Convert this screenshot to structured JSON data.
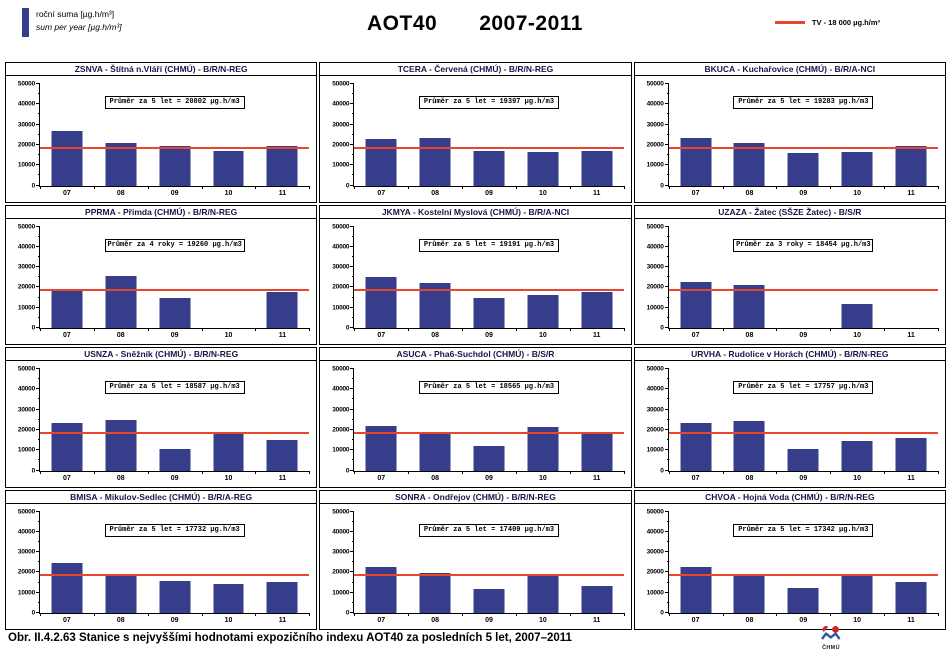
{
  "header": {
    "legend_bar": {
      "line1": "roční suma [µg.h/m³]",
      "line2": "sum per year [µg.h/m³]"
    },
    "title_left": "AOT40",
    "title_right": "2007-2011",
    "tv_legend": "TV - 18 000 µg.h/m³"
  },
  "footer": {
    "caption": "Obr. II.4.2.63  Stanice s nejvyššími hodnotami expozičního indexu AOT40 za posledních 5 let, 2007–2011",
    "logo_label": "ČHMÚ"
  },
  "colors": {
    "bar": "#363d8a",
    "tv_line": "#e8472e",
    "panel_title": "#16164a"
  },
  "axis": {
    "categories": [
      "07",
      "08",
      "09",
      "10",
      "11"
    ],
    "y_ticks": [
      0,
      10000,
      20000,
      30000,
      40000,
      50000
    ],
    "y_minor_step": 5000,
    "ylim": [
      0,
      50000
    ],
    "tv_value": 18000,
    "unit": "µg.h/m3"
  },
  "chart_data": [
    {
      "type": "bar",
      "title": "ZSNVA - Štítná n.Vláří (CHMÚ) - B/R/N-REG",
      "note": "Průměr za 5 let = 20802 µg.h/m3",
      "categories": [
        "07",
        "08",
        "09",
        "10",
        "11"
      ],
      "values": [
        26800,
        21000,
        19400,
        17200,
        19700
      ],
      "tv_value": 18000,
      "ylim": [
        0,
        50000
      ]
    },
    {
      "type": "bar",
      "title": "TCERA - Červená (CHMÚ) - B/R/N-REG",
      "note": "Průměr za 5 let = 19397 µg.h/m3",
      "categories": [
        "07",
        "08",
        "09",
        "10",
        "11"
      ],
      "values": [
        22800,
        23400,
        17000,
        16500,
        17000
      ],
      "tv_value": 18000,
      "ylim": [
        0,
        50000
      ]
    },
    {
      "type": "bar",
      "title": "BKUCA - Kuchařovice (CHMÚ) - B/R/A-NCI",
      "note": "Průměr za 5 let = 19283 µg.h/m3",
      "categories": [
        "07",
        "08",
        "09",
        "10",
        "11"
      ],
      "values": [
        23300,
        21000,
        15800,
        16400,
        19700
      ],
      "tv_value": 18000,
      "ylim": [
        0,
        50000
      ]
    },
    {
      "type": "bar",
      "title": "PPRMA - Přimda (CHMÚ) - B/R/N-REG",
      "note": "Průměr za 4 roky = 19260 µg.h/m3",
      "categories": [
        "07",
        "08",
        "09",
        "10",
        "11"
      ],
      "values": [
        18700,
        25800,
        15000,
        null,
        17500
      ],
      "tv_value": 18000,
      "ylim": [
        0,
        50000
      ]
    },
    {
      "type": "bar",
      "title": "JKMYA - Kostelní Myslová (CHMÚ) - B/R/A-NCI",
      "note": "Průměr za 5 let = 19191 µg.h/m3",
      "categories": [
        "07",
        "08",
        "09",
        "10",
        "11"
      ],
      "values": [
        25200,
        22200,
        14800,
        16100,
        17600
      ],
      "tv_value": 18000,
      "ylim": [
        0,
        50000
      ]
    },
    {
      "type": "bar",
      "title": "UZAZA - Žatec (SŠZE Žatec) - B/S/R",
      "note": "Průměr za 3 roky = 18454 µg.h/m3",
      "categories": [
        "07",
        "08",
        "09",
        "10",
        "11"
      ],
      "values": [
        22700,
        21000,
        null,
        12000,
        null
      ],
      "tv_value": 18000,
      "ylim": [
        0,
        50000
      ]
    },
    {
      "type": "bar",
      "title": "USNZA - Sněžník (CHMÚ) - B/R/N-REG",
      "note": "Průměr za 5 let = 18587 µg.h/m3",
      "categories": [
        "07",
        "08",
        "09",
        "10",
        "11"
      ],
      "values": [
        23200,
        25100,
        10400,
        19000,
        15200
      ],
      "tv_value": 18000,
      "ylim": [
        0,
        50000
      ]
    },
    {
      "type": "bar",
      "title": "ASUCA - Pha6-Suchdol (CHMÚ) - B/S/R",
      "note": "Průměr za 5 let = 18565 µg.h/m3",
      "categories": [
        "07",
        "08",
        "09",
        "10",
        "11"
      ],
      "values": [
        22100,
        19100,
        12300,
        21300,
        17900
      ],
      "tv_value": 18000,
      "ylim": [
        0,
        50000
      ]
    },
    {
      "type": "bar",
      "title": "URVHA - Rudolice v Horách (CHMÚ) - B/R/N-REG",
      "note": "Průměr za 5 let = 17757 µg.h/m3",
      "categories": [
        "07",
        "08",
        "09",
        "10",
        "11"
      ],
      "values": [
        23500,
        24200,
        10400,
        14600,
        16100
      ],
      "tv_value": 18000,
      "ylim": [
        0,
        50000
      ]
    },
    {
      "type": "bar",
      "title": "BMISA - Mikulov-Sedlec (CHMÚ) - B/R/A-REG",
      "note": "Průměr za 5 let = 17732 µg.h/m3",
      "categories": [
        "07",
        "08",
        "09",
        "10",
        "11"
      ],
      "values": [
        24400,
        19200,
        16000,
        14200,
        15200
      ],
      "tv_value": 18000,
      "ylim": [
        0,
        50000
      ]
    },
    {
      "type": "bar",
      "title": "SONRA - Ondřejov (CHMÚ) - B/R/N-REG",
      "note": "Průměr za 5 let = 17409 µg.h/m3",
      "categories": [
        "07",
        "08",
        "09",
        "10",
        "11"
      ],
      "values": [
        22800,
        19700,
        11900,
        19300,
        13300
      ],
      "tv_value": 18000,
      "ylim": [
        0,
        50000
      ]
    },
    {
      "type": "bar",
      "title": "CHVOA - Hojná Voda (CHMÚ) - B/R/N-REG",
      "note": "Průměr za 5 let = 17342 µg.h/m3",
      "categories": [
        "07",
        "08",
        "09",
        "10",
        "11"
      ],
      "values": [
        22700,
        18700,
        12200,
        18100,
        15100
      ],
      "tv_value": 18000,
      "ylim": [
        0,
        50000
      ]
    }
  ]
}
